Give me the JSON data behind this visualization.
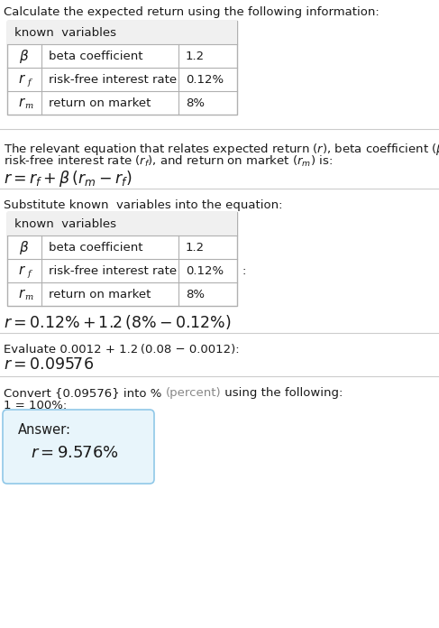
{
  "title": "Calculate the expected return using the following information:",
  "table1_header": "known  variables",
  "table_rows": [
    [
      "β",
      "beta coefficient",
      "1.2"
    ],
    [
      "r_f",
      "risk-free interest rate",
      "0.12%"
    ],
    [
      "r_m",
      "return on market",
      "8%"
    ]
  ],
  "section3_title": "Substitute known  variables into the equation:",
  "section4_title": "Evaluate 0.0012 + 1.2 (0.08 − 0.0012):",
  "section5_line1a": "Convert {0.09576} into % ",
  "section5_line1b": "(percent)",
  "section5_line1c": " using the following:",
  "section5_line2": "1 = 100%:",
  "answer_label": "Answer:",
  "bg_color": "#ffffff",
  "table_border_color": "#b0b0b0",
  "table_header_bg": "#f0f0f0",
  "answer_box_fill": "#e8f5fb",
  "answer_box_border": "#90c8e8",
  "text_color": "#1a1a1a",
  "gray_color": "#888888",
  "divider_color": "#cccccc",
  "fs_body": 9.5,
  "fs_eq": 12.5,
  "fs_sub": 7.5,
  "fs_answer": 13
}
